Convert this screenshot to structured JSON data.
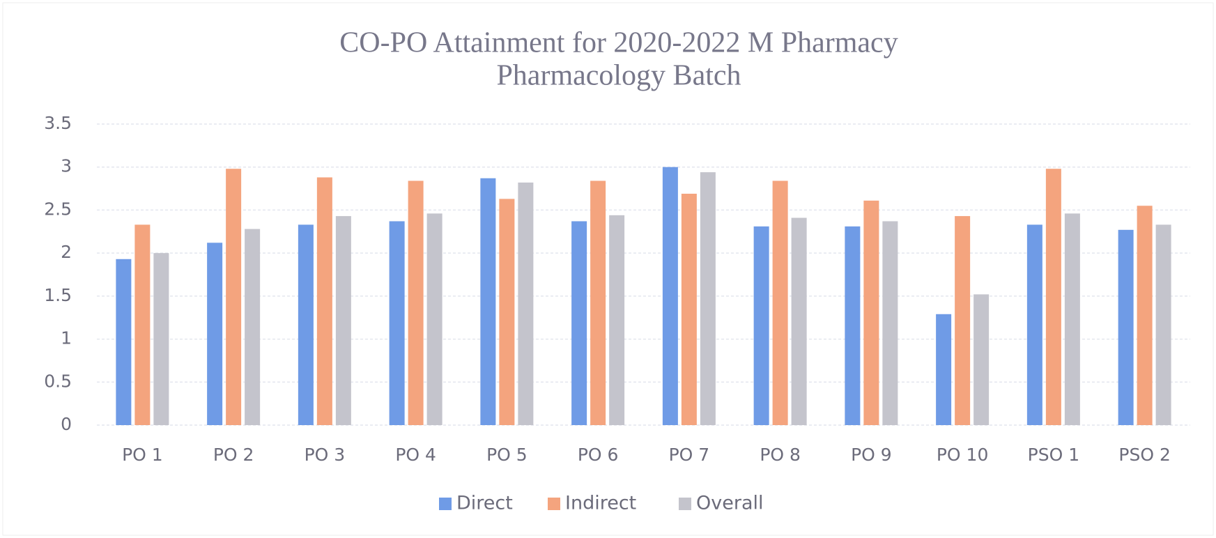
{
  "chart_data": {
    "type": "bar",
    "title": [
      "CO-PO Attainment for 2020-2022  M Pharmacy",
      "Pharmacology Batch"
    ],
    "categories": [
      "PO 1",
      "PO 2",
      "PO 3",
      "PO 4",
      "PO 5",
      "PO 6",
      "PO 7",
      "PO 8",
      "PO 9",
      "PO 10",
      "PSO 1",
      "PSO 2"
    ],
    "series": [
      {
        "name": "Direct",
        "color": "#6f9be6",
        "values": [
          1.93,
          2.12,
          2.33,
          2.37,
          2.87,
          2.37,
          3.0,
          2.31,
          2.31,
          1.29,
          2.33,
          2.27
        ]
      },
      {
        "name": "Indirect",
        "color": "#f4a47e",
        "values": [
          2.33,
          2.98,
          2.88,
          2.84,
          2.63,
          2.84,
          2.69,
          2.84,
          2.61,
          2.43,
          2.98,
          2.55
        ]
      },
      {
        "name": "Overall",
        "color": "#c4c4cc",
        "values": [
          2.0,
          2.28,
          2.43,
          2.46,
          2.82,
          2.44,
          2.94,
          2.41,
          2.37,
          1.52,
          2.46,
          2.33
        ]
      }
    ],
    "ylim": [
      0,
      3.5
    ],
    "yticks": [
      0,
      0.5,
      1,
      1.5,
      2,
      2.5,
      3,
      3.5
    ],
    "grid": true,
    "legend": "bottom"
  }
}
